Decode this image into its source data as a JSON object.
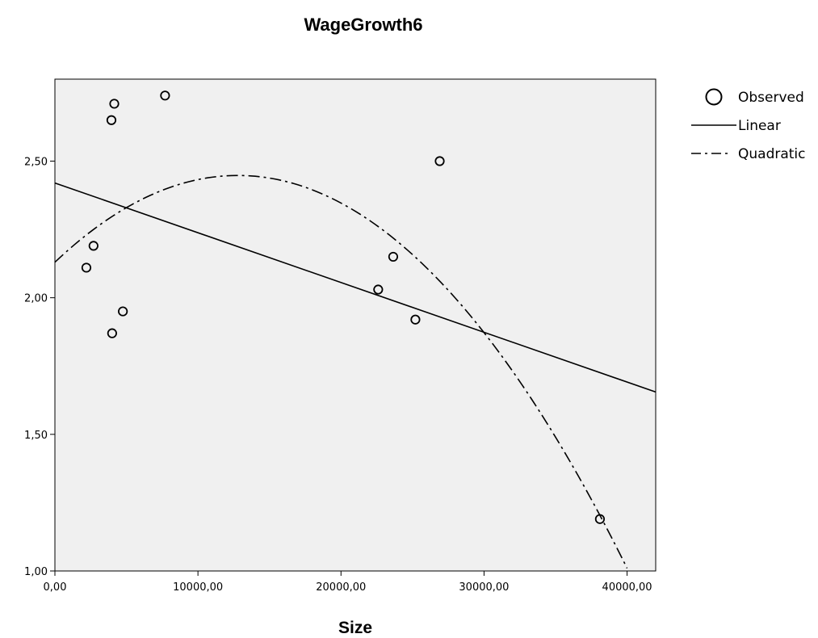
{
  "chart_data": {
    "type": "scatter",
    "title": "WageGrowth6",
    "xlabel": "Size",
    "ylabel": "",
    "xlim": [
      0,
      42000
    ],
    "ylim": [
      1.0,
      2.8
    ],
    "x_ticks": [
      {
        "value": 0,
        "label": "0,00"
      },
      {
        "value": 10000,
        "label": "10000,00"
      },
      {
        "value": 20000,
        "label": "20000,00"
      },
      {
        "value": 30000,
        "label": "30000,00"
      },
      {
        "value": 40000,
        "label": "40000,00"
      }
    ],
    "y_ticks": [
      {
        "value": 1.0,
        "label": "1,00"
      },
      {
        "value": 1.5,
        "label": "1,50"
      },
      {
        "value": 2.0,
        "label": "2,00"
      },
      {
        "value": 2.5,
        "label": "2,50"
      }
    ],
    "grid": false,
    "plot_background": "#f0f0f0",
    "legend_position": "right",
    "series": [
      {
        "name": "Observed",
        "kind": "points",
        "marker": "open-circle",
        "color": "#000000",
        "points": [
          {
            "x": 2200,
            "y": 2.11
          },
          {
            "x": 2700,
            "y": 2.19
          },
          {
            "x": 3950,
            "y": 2.65
          },
          {
            "x": 4150,
            "y": 2.71
          },
          {
            "x": 4000,
            "y": 1.87
          },
          {
            "x": 4750,
            "y": 1.95
          },
          {
            "x": 7700,
            "y": 2.74
          },
          {
            "x": 22600,
            "y": 2.03
          },
          {
            "x": 23650,
            "y": 2.15
          },
          {
            "x": 25200,
            "y": 1.92
          },
          {
            "x": 26900,
            "y": 2.5
          },
          {
            "x": 38100,
            "y": 1.19
          }
        ]
      },
      {
        "name": "Linear",
        "kind": "line",
        "dash": "solid",
        "color": "#000000",
        "x": [
          0,
          42000
        ],
        "y": [
          2.42,
          1.655
        ]
      },
      {
        "name": "Quadratic",
        "kind": "curve",
        "dash": "dash-dot",
        "color": "#000000",
        "x": [
          0,
          5000,
          10000,
          12500,
          15000,
          20000,
          25000,
          30000,
          35000,
          40000
        ],
        "y": [
          2.13,
          2.334,
          2.438,
          2.452,
          2.438,
          2.334,
          2.13,
          1.826,
          1.422,
          1.01
        ]
      }
    ]
  }
}
